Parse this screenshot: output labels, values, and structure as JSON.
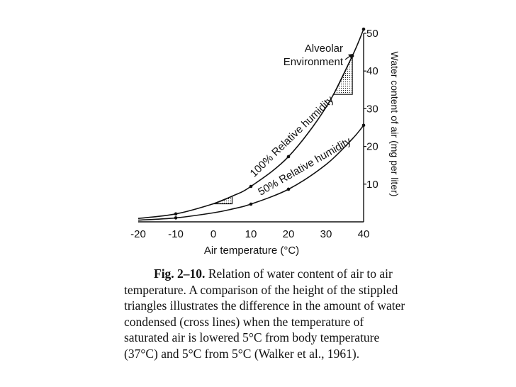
{
  "chart_data": {
    "type": "line",
    "xlabel": "Air temperature (°C)",
    "ylabel": "Water content of air (mg per liter)",
    "xlim": [
      -20,
      40
    ],
    "ylim": [
      0,
      50
    ],
    "x_ticks": [
      "-20",
      "-10",
      "0",
      "10",
      "20",
      "30",
      "40"
    ],
    "y_ticks": [
      "10",
      "20",
      "30",
      "40",
      "50"
    ],
    "y_axis_side": "right",
    "grid": false,
    "series": [
      {
        "name": "100% Relative humidity",
        "x": [
          -20,
          -10,
          0,
          5,
          10,
          20,
          30,
          37,
          40
        ],
        "y": [
          0.9,
          2.1,
          4.8,
          6.8,
          9.4,
          17.3,
          30.4,
          44.0,
          51.1
        ]
      },
      {
        "name": "50% Relative humidity",
        "x": [
          -20,
          -10,
          0,
          5,
          10,
          20,
          30,
          37,
          40
        ],
        "y": [
          0.45,
          1.05,
          2.4,
          3.4,
          4.7,
          8.65,
          15.2,
          22.0,
          25.6
        ]
      }
    ],
    "annotations": [
      {
        "text": "Alveolar",
        "x": 37,
        "y": 44
      },
      {
        "text": "Environment",
        "x": 37,
        "y": 44
      }
    ],
    "stippled_triangles": [
      {
        "x_from": 32,
        "x_to": 37,
        "y_low": 33.8,
        "y_high": 44.0
      },
      {
        "x_from": 0,
        "x_to": 5,
        "y_low": 4.8,
        "y_high": 6.8
      }
    ]
  },
  "caption": {
    "label": "Fig. 2–10.",
    "text": " Relation of water content of air to air temperature. A comparison of the height of the stippled triangles illustrates the difference in the amount of water condensed (cross lines) when the temperature of saturated air is lowered 5°C from body temperature (37°C) and 5°C from 5°C (Walker et al., 1961)."
  },
  "colors": {
    "ink": "#111111",
    "paper": "#ffffff"
  }
}
